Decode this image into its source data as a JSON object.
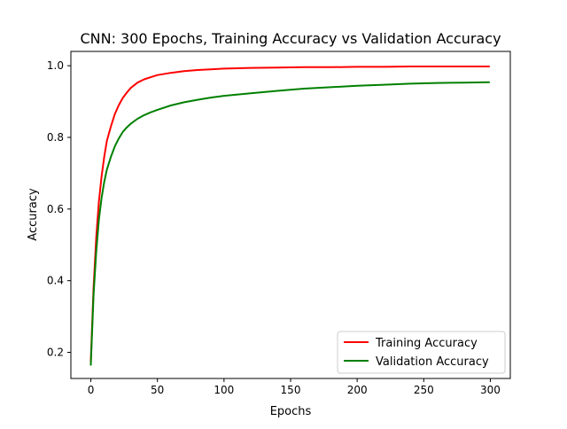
{
  "chart_data": {
    "type": "line",
    "title": "CNN: 300 Epochs, Training Accuracy vs Validation Accuracy",
    "xlabel": "Epochs",
    "ylabel": "Accuracy",
    "xlim": [
      -15,
      315
    ],
    "ylim": [
      0.127,
      1.04
    ],
    "x_ticks": [
      0,
      50,
      100,
      150,
      200,
      250,
      300
    ],
    "y_ticks": [
      0.2,
      0.4,
      0.6,
      0.8,
      1.0
    ],
    "x_tick_labels": [
      "0",
      "50",
      "100",
      "150",
      "200",
      "250",
      "300"
    ],
    "y_tick_labels": [
      "0.2",
      "0.4",
      "0.6",
      "0.8",
      "1.0"
    ],
    "grid": false,
    "legend": "lower-right",
    "series": [
      {
        "name": "Training Accuracy",
        "color": "#ff0000",
        "points": [
          [
            0,
            0.175
          ],
          [
            2,
            0.38
          ],
          [
            4,
            0.52
          ],
          [
            6,
            0.62
          ],
          [
            8,
            0.69
          ],
          [
            10,
            0.745
          ],
          [
            12,
            0.79
          ],
          [
            15,
            0.83
          ],
          [
            18,
            0.865
          ],
          [
            21,
            0.89
          ],
          [
            24,
            0.91
          ],
          [
            27,
            0.925
          ],
          [
            30,
            0.938
          ],
          [
            35,
            0.953
          ],
          [
            40,
            0.962
          ],
          [
            45,
            0.968
          ],
          [
            50,
            0.974
          ],
          [
            60,
            0.98
          ],
          [
            70,
            0.985
          ],
          [
            80,
            0.988
          ],
          [
            90,
            0.99
          ],
          [
            100,
            0.992
          ],
          [
            120,
            0.994
          ],
          [
            140,
            0.995
          ],
          [
            160,
            0.996
          ],
          [
            180,
            0.996
          ],
          [
            200,
            0.997
          ],
          [
            220,
            0.997
          ],
          [
            240,
            0.998
          ],
          [
            260,
            0.998
          ],
          [
            280,
            0.998
          ],
          [
            299,
            0.998
          ]
        ]
      },
      {
        "name": "Validation Accuracy",
        "color": "#008000",
        "points": [
          [
            0,
            0.165
          ],
          [
            2,
            0.36
          ],
          [
            4,
            0.48
          ],
          [
            6,
            0.57
          ],
          [
            8,
            0.63
          ],
          [
            10,
            0.675
          ],
          [
            12,
            0.71
          ],
          [
            15,
            0.745
          ],
          [
            18,
            0.775
          ],
          [
            21,
            0.797
          ],
          [
            24,
            0.815
          ],
          [
            27,
            0.828
          ],
          [
            30,
            0.838
          ],
          [
            35,
            0.852
          ],
          [
            40,
            0.862
          ],
          [
            45,
            0.87
          ],
          [
            50,
            0.877
          ],
          [
            60,
            0.889
          ],
          [
            70,
            0.898
          ],
          [
            80,
            0.905
          ],
          [
            90,
            0.911
          ],
          [
            100,
            0.916
          ],
          [
            120,
            0.923
          ],
          [
            140,
            0.93
          ],
          [
            160,
            0.936
          ],
          [
            180,
            0.94
          ],
          [
            200,
            0.944
          ],
          [
            220,
            0.947
          ],
          [
            240,
            0.95
          ],
          [
            260,
            0.952
          ],
          [
            280,
            0.953
          ],
          [
            299,
            0.954
          ]
        ]
      }
    ]
  }
}
